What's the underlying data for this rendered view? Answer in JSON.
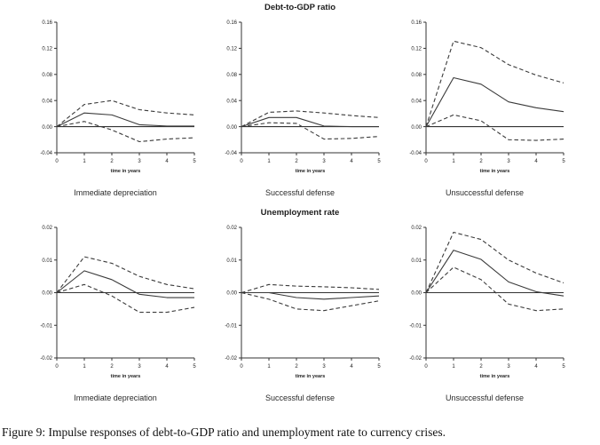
{
  "figure": {
    "caption": "Figure 9: Impulse responses of debt-to-GDP ratio and unemployment rate to currency crises.",
    "row_titles": [
      "Debt-to-GDP ratio",
      "Unemployment rate"
    ],
    "panel_subtitles": [
      "Immediate depreciation",
      "Successful defense",
      "Unsuccessful defense"
    ],
    "line_color": "#3a3a3a",
    "axis_color": "#333333",
    "text_color": "#222222"
  },
  "chart_data": [
    {
      "type": "line",
      "title": "Debt-to-GDP ratio",
      "subtitle": "Immediate depreciation",
      "xlabel": "time in years",
      "x": [
        0,
        1,
        2,
        3,
        4,
        5
      ],
      "xlim": [
        0,
        5
      ],
      "ylim": [
        -0.04,
        0.16
      ],
      "xtick_labels": [
        "0",
        "1",
        "2",
        "3",
        "4",
        "5"
      ],
      "yticks": [
        0.16,
        0.12,
        0.08,
        0.04,
        0.0,
        -0.04
      ],
      "ytick_labels": [
        "0.16",
        "0.12",
        "0.08",
        "0.04",
        "0.00",
        "-0.04"
      ],
      "zero_line": true,
      "grid": false,
      "legend": "none",
      "series": [
        {
          "name": "point estimate",
          "style": "solid",
          "values": [
            0,
            0.021,
            0.018,
            0.003,
            0.001,
            0.001
          ]
        },
        {
          "name": "upper confidence band",
          "style": "dashed",
          "values": [
            0,
            0.034,
            0.04,
            0.026,
            0.021,
            0.018
          ]
        },
        {
          "name": "lower confidence band",
          "style": "dashed",
          "values": [
            0,
            0.008,
            -0.005,
            -0.023,
            -0.019,
            -0.017
          ]
        }
      ]
    },
    {
      "type": "line",
      "title": "Debt-to-GDP ratio",
      "subtitle": "Successful defense",
      "xlabel": "time in years",
      "x": [
        0,
        1,
        2,
        3,
        4,
        5
      ],
      "xlim": [
        0,
        5
      ],
      "ylim": [
        -0.04,
        0.16
      ],
      "xtick_labels": [
        "0",
        "1",
        "2",
        "3",
        "4",
        "5"
      ],
      "yticks": [
        0.16,
        0.12,
        0.08,
        0.04,
        0.0,
        -0.04
      ],
      "ytick_labels": [
        "0.16",
        "0.12",
        "0.08",
        "0.04",
        "0.00",
        "-0.04"
      ],
      "zero_line": true,
      "grid": false,
      "legend": "none",
      "series": [
        {
          "name": "point estimate",
          "style": "solid",
          "values": [
            0,
            0.014,
            0.014,
            0.001,
            0.0,
            0.0
          ]
        },
        {
          "name": "upper confidence band",
          "style": "dashed",
          "values": [
            0,
            0.022,
            0.024,
            0.021,
            0.017,
            0.014
          ]
        },
        {
          "name": "lower confidence band",
          "style": "dashed",
          "values": [
            0,
            0.006,
            0.005,
            -0.019,
            -0.018,
            -0.015
          ]
        }
      ]
    },
    {
      "type": "line",
      "title": "Debt-to-GDP ratio",
      "subtitle": "Unsuccessful defense",
      "xlabel": "time in years",
      "x": [
        0,
        1,
        2,
        3,
        4,
        5
      ],
      "xlim": [
        0,
        5
      ],
      "ylim": [
        -0.04,
        0.16
      ],
      "xtick_labels": [
        "0",
        "1",
        "2",
        "3",
        "4",
        "5"
      ],
      "yticks": [
        0.16,
        0.12,
        0.08,
        0.04,
        0.0,
        -0.04
      ],
      "ytick_labels": [
        "0.16",
        "0.12",
        "0.08",
        "0.04",
        "0.00",
        "-0.04"
      ],
      "zero_line": true,
      "grid": false,
      "legend": "none",
      "series": [
        {
          "name": "point estimate",
          "style": "solid",
          "values": [
            0,
            0.075,
            0.065,
            0.038,
            0.029,
            0.023
          ]
        },
        {
          "name": "upper confidence band",
          "style": "dashed",
          "values": [
            0,
            0.131,
            0.121,
            0.095,
            0.079,
            0.067
          ]
        },
        {
          "name": "lower confidence band",
          "style": "dashed",
          "values": [
            0,
            0.018,
            0.009,
            -0.02,
            -0.021,
            -0.019
          ]
        }
      ]
    },
    {
      "type": "line",
      "title": "Unemployment rate",
      "subtitle": "Immediate depreciation",
      "xlabel": "time in years",
      "x": [
        0,
        1,
        2,
        3,
        4,
        5
      ],
      "xlim": [
        0,
        5
      ],
      "ylim": [
        -0.02,
        0.02
      ],
      "xtick_labels": [
        "0",
        "1",
        "2",
        "3",
        "4",
        "5"
      ],
      "yticks": [
        0.02,
        0.01,
        0.0,
        -0.01,
        -0.02
      ],
      "ytick_labels": [
        "0.02",
        "0.01",
        "0.00",
        "-0.01",
        "-0.02"
      ],
      "zero_line": true,
      "grid": false,
      "legend": "none",
      "series": [
        {
          "name": "point estimate",
          "style": "solid",
          "values": [
            0,
            0.0067,
            0.004,
            -0.0005,
            -0.0015,
            -0.0015
          ]
        },
        {
          "name": "upper confidence band",
          "style": "dashed",
          "values": [
            0,
            0.011,
            0.009,
            0.005,
            0.0025,
            0.0012
          ]
        },
        {
          "name": "lower confidence band",
          "style": "dashed",
          "values": [
            0,
            0.0025,
            -0.001,
            -0.006,
            -0.006,
            -0.0045
          ]
        }
      ]
    },
    {
      "type": "line",
      "title": "Unemployment rate",
      "subtitle": "Successful defense",
      "xlabel": "time in years",
      "x": [
        0,
        1,
        2,
        3,
        4,
        5
      ],
      "xlim": [
        0,
        5
      ],
      "ylim": [
        -0.02,
        0.02
      ],
      "xtick_labels": [
        "0",
        "1",
        "2",
        "3",
        "4",
        "5"
      ],
      "yticks": [
        0.02,
        0.01,
        0.0,
        -0.01,
        -0.02
      ],
      "ytick_labels": [
        "0.02",
        "0.01",
        "0.00",
        "-0.01",
        "-0.02"
      ],
      "zero_line": true,
      "grid": false,
      "legend": "none",
      "series": [
        {
          "name": "point estimate",
          "style": "solid",
          "values": [
            0,
            0.0,
            -0.0015,
            -0.002,
            -0.0015,
            -0.001
          ]
        },
        {
          "name": "upper confidence band",
          "style": "dashed",
          "values": [
            0,
            0.0025,
            0.002,
            0.0018,
            0.0015,
            0.001
          ]
        },
        {
          "name": "lower confidence band",
          "style": "dashed",
          "values": [
            0,
            -0.002,
            -0.005,
            -0.0055,
            -0.004,
            -0.0025
          ]
        }
      ]
    },
    {
      "type": "line",
      "title": "Unemployment rate",
      "subtitle": "Unsuccessful defense",
      "xlabel": "time in years",
      "x": [
        0,
        1,
        2,
        3,
        4,
        5
      ],
      "xlim": [
        0,
        5
      ],
      "ylim": [
        -0.02,
        0.02
      ],
      "xtick_labels": [
        "0",
        "1",
        "2",
        "3",
        "4",
        "5"
      ],
      "yticks": [
        0.02,
        0.01,
        0.0,
        -0.01,
        -0.02
      ],
      "ytick_labels": [
        "0.02",
        "0.01",
        "0.00",
        "-0.01",
        "-0.02"
      ],
      "zero_line": true,
      "grid": false,
      "legend": "none",
      "series": [
        {
          "name": "point estimate",
          "style": "solid",
          "values": [
            0,
            0.013,
            0.0102,
            0.0033,
            0.0003,
            -0.001
          ]
        },
        {
          "name": "upper confidence band",
          "style": "dashed",
          "values": [
            0,
            0.0185,
            0.0163,
            0.01,
            0.006,
            0.003
          ]
        },
        {
          "name": "lower confidence band",
          "style": "dashed",
          "values": [
            0,
            0.0078,
            0.004,
            -0.0035,
            -0.0055,
            -0.005
          ]
        }
      ]
    }
  ]
}
